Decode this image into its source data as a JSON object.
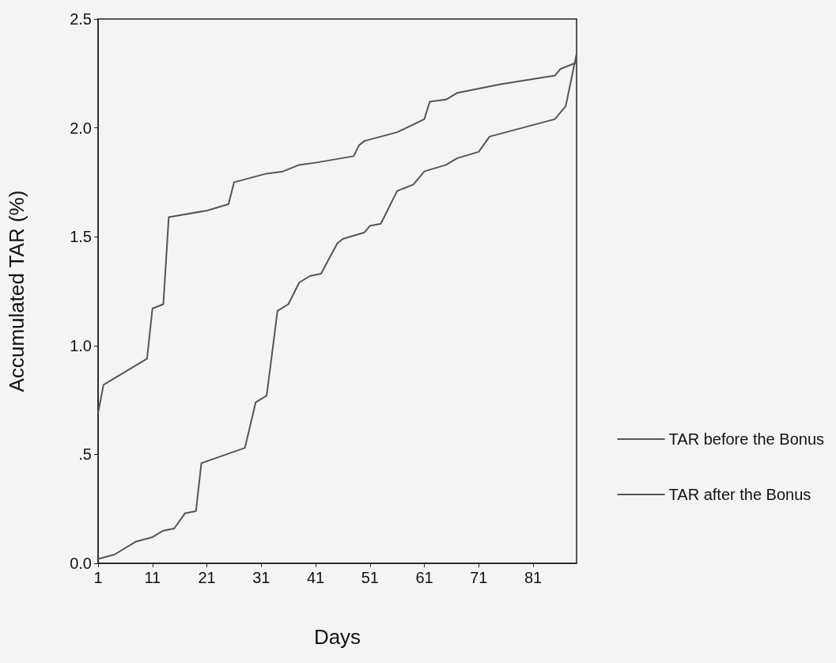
{
  "chart_data": {
    "type": "line",
    "xlabel": "Days",
    "ylabel": "Accumulated TAR (%)",
    "xlim": [
      1,
      89
    ],
    "xticks": [
      1,
      11,
      21,
      31,
      41,
      51,
      61,
      71,
      81
    ],
    "ylim": [
      0,
      2.5
    ],
    "yticks": [
      {
        "value": 0,
        "label": "0.0"
      },
      {
        "value": 0.5,
        "label": ".5"
      },
      {
        "value": 1,
        "label": "1.0"
      },
      {
        "value": 1.5,
        "label": "1.5"
      },
      {
        "value": 2,
        "label": "2.0"
      },
      2.5
    ],
    "grid": false,
    "legend": "right",
    "marker": "none",
    "line_style": "solid",
    "series": [
      {
        "name": "TAR before the Bonus",
        "color": "#555555",
        "x": [
          1,
          2,
          10,
          11,
          13,
          14,
          21,
          25,
          26,
          32,
          35,
          38,
          41,
          48,
          49,
          50,
          56,
          61,
          62,
          65,
          67,
          75,
          85,
          86,
          87,
          89
        ],
        "values": [
          0.69,
          0.82,
          0.94,
          1.17,
          1.19,
          1.59,
          1.62,
          1.65,
          1.75,
          1.79,
          1.8,
          1.83,
          1.84,
          1.87,
          1.92,
          1.94,
          1.98,
          2.04,
          2.12,
          2.13,
          2.16,
          2.2,
          2.24,
          2.27,
          2.28,
          2.3
        ]
      },
      {
        "name": "TAR after the Bonus",
        "color": "#555555",
        "x": [
          1,
          4,
          8,
          11,
          13,
          15,
          17,
          19,
          20,
          28,
          30,
          32,
          34,
          36,
          38,
          40,
          42,
          45,
          46,
          50,
          51,
          53,
          56,
          59,
          61,
          65,
          67,
          71,
          73,
          85,
          87,
          89
        ],
        "values": [
          0.02,
          0.04,
          0.1,
          0.12,
          0.15,
          0.16,
          0.23,
          0.24,
          0.46,
          0.53,
          0.74,
          0.77,
          1.16,
          1.19,
          1.29,
          1.32,
          1.33,
          1.47,
          1.49,
          1.52,
          1.55,
          1.56,
          1.71,
          1.74,
          1.8,
          1.83,
          1.86,
          1.89,
          1.96,
          2.04,
          2.1,
          2.34
        ]
      }
    ]
  }
}
